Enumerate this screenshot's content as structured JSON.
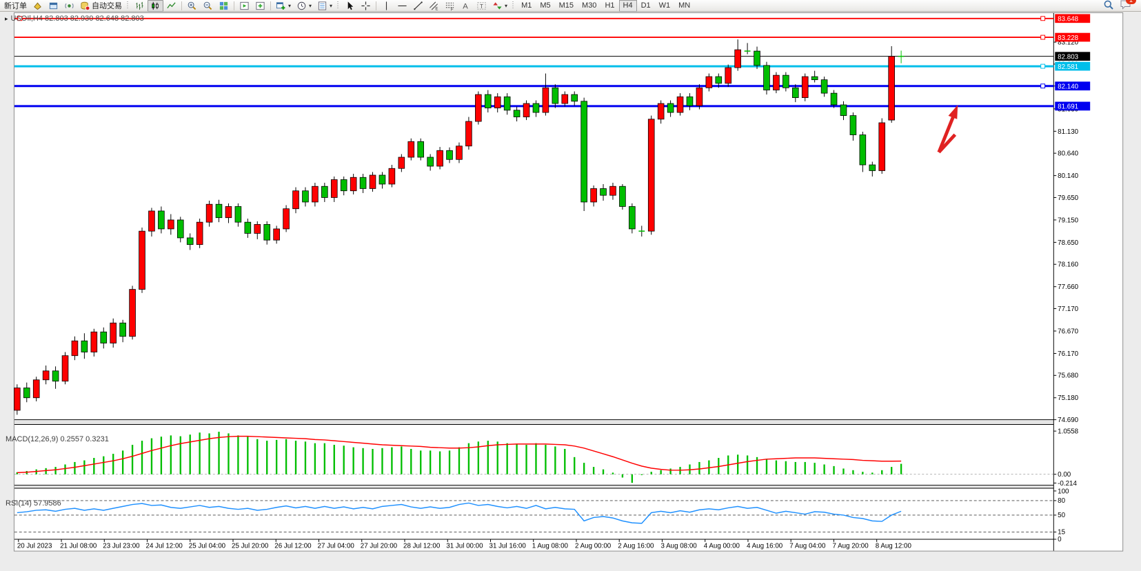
{
  "toolbar": {
    "new_order_label": "新订单",
    "autotrading_label": "自动交易",
    "timeframes": [
      "M1",
      "M5",
      "M15",
      "M30",
      "H1",
      "H4",
      "D1",
      "W1",
      "MN"
    ],
    "active_timeframe": "H4",
    "chat_badge": "1"
  },
  "chart": {
    "title": "USOIl,H4  82.803 82.930 82.648 82.803",
    "macd_label": "MACD(12,26,9) 0.2557 0.3231",
    "rsi_label": "RSI(14) 57.9586"
  },
  "chart_data": {
    "type": "candlestick",
    "symbol": "USOIl",
    "timeframe": "H4",
    "current_ohlc": {
      "open": "82.803",
      "high": "82.930",
      "low": "82.648",
      "close": "82.803"
    },
    "bull_color": "#FF0000",
    "bear_color": "#00BE00",
    "wick_color": "#000000",
    "price_ticks": [
      "83.120",
      "82.630",
      "82.140",
      "81.630",
      "81.130",
      "80.640",
      "80.140",
      "79.650",
      "79.150",
      "78.650",
      "78.160",
      "77.660",
      "77.170",
      "76.670",
      "76.170",
      "75.680",
      "75.180",
      "74.690"
    ],
    "hlines": [
      {
        "price": 83.648,
        "label": "83.648",
        "color": "#FF0000",
        "width": 2,
        "handles": "both"
      },
      {
        "price": 83.228,
        "label": "83.228",
        "color": "#FF0000",
        "width": 2,
        "handles": "right"
      },
      {
        "price": 82.803,
        "label": "82.803",
        "color": "#000000",
        "width": 1,
        "handles": "none"
      },
      {
        "price": 82.581,
        "label": "82.581",
        "color": "#00BEEA",
        "width": 3,
        "handles": "right"
      },
      {
        "price": 82.14,
        "label": "82.140",
        "color": "#0000F0",
        "width": 3,
        "handles": "right"
      },
      {
        "price": 81.691,
        "label": "81.691",
        "color": "#0000F0",
        "width": 3,
        "handles": "none"
      }
    ],
    "time_labels": [
      "20 Jul 2023",
      "21 Jul 08:00",
      "23 Jul 23:00",
      "24 Jul 12:00",
      "25 Jul 04:00",
      "25 Jul 20:00",
      "26 Jul 12:00",
      "27 Jul 04:00",
      "27 Jul 20:00",
      "28 Jul 12:00",
      "31 Jul 00:00",
      "31 Jul 16:00",
      "1 Aug 08:00",
      "2 Aug 00:00",
      "2 Aug 16:00",
      "3 Aug 08:00",
      "4 Aug 00:00",
      "4 Aug 16:00",
      "7 Aug 04:00",
      "7 Aug 20:00",
      "8 Aug 12:00"
    ],
    "candles": [
      [
        74.9,
        75.48,
        74.8,
        75.4
      ],
      [
        75.4,
        75.52,
        75.08,
        75.18
      ],
      [
        75.18,
        75.65,
        75.1,
        75.58
      ],
      [
        75.58,
        75.9,
        75.48,
        75.78
      ],
      [
        75.78,
        75.88,
        75.38,
        75.55
      ],
      [
        75.55,
        76.2,
        75.48,
        76.12
      ],
      [
        76.12,
        76.55,
        76.02,
        76.45
      ],
      [
        76.45,
        76.62,
        76.05,
        76.2
      ],
      [
        76.2,
        76.72,
        76.1,
        76.65
      ],
      [
        76.65,
        76.75,
        76.28,
        76.4
      ],
      [
        76.4,
        76.95,
        76.3,
        76.85
      ],
      [
        76.85,
        76.92,
        76.42,
        76.55
      ],
      [
        76.55,
        77.68,
        76.48,
        77.6
      ],
      [
        77.6,
        78.98,
        77.52,
        78.9
      ],
      [
        78.9,
        79.42,
        78.78,
        79.35
      ],
      [
        79.35,
        79.45,
        78.85,
        78.95
      ],
      [
        78.95,
        79.28,
        78.82,
        79.15
      ],
      [
        79.15,
        79.22,
        78.65,
        78.75
      ],
      [
        78.75,
        78.85,
        78.48,
        78.6
      ],
      [
        78.6,
        79.18,
        78.52,
        79.1
      ],
      [
        79.1,
        79.58,
        79.0,
        79.5
      ],
      [
        79.5,
        79.6,
        79.1,
        79.2
      ],
      [
        79.2,
        79.52,
        79.08,
        79.45
      ],
      [
        79.45,
        79.52,
        79.0,
        79.1
      ],
      [
        79.1,
        79.18,
        78.75,
        78.85
      ],
      [
        78.85,
        79.12,
        78.72,
        79.05
      ],
      [
        79.05,
        79.12,
        78.6,
        78.7
      ],
      [
        78.7,
        79.02,
        78.62,
        78.95
      ],
      [
        78.95,
        79.48,
        78.88,
        79.4
      ],
      [
        79.4,
        79.88,
        79.3,
        79.8
      ],
      [
        79.8,
        79.88,
        79.45,
        79.55
      ],
      [
        79.55,
        79.98,
        79.45,
        79.9
      ],
      [
        79.9,
        79.98,
        79.55,
        79.65
      ],
      [
        79.65,
        80.12,
        79.55,
        80.05
      ],
      [
        80.05,
        80.12,
        79.7,
        79.8
      ],
      [
        79.8,
        80.18,
        79.72,
        80.1
      ],
      [
        80.1,
        80.18,
        79.75,
        79.85
      ],
      [
        79.85,
        80.22,
        79.78,
        80.15
      ],
      [
        80.15,
        80.22,
        79.85,
        79.95
      ],
      [
        79.95,
        80.38,
        79.88,
        80.3
      ],
      [
        80.3,
        80.62,
        80.22,
        80.55
      ],
      [
        80.55,
        80.97,
        80.48,
        80.9
      ],
      [
        80.9,
        80.97,
        80.48,
        80.55
      ],
      [
        80.55,
        80.62,
        80.25,
        80.35
      ],
      [
        80.35,
        80.78,
        80.28,
        80.7
      ],
      [
        80.7,
        80.77,
        80.42,
        80.5
      ],
      [
        80.5,
        80.88,
        80.42,
        80.8
      ],
      [
        80.8,
        81.45,
        80.72,
        81.35
      ],
      [
        81.35,
        82.02,
        81.28,
        81.95
      ],
      [
        81.95,
        82.05,
        81.55,
        81.65
      ],
      [
        81.65,
        81.98,
        81.55,
        81.9
      ],
      [
        81.9,
        81.98,
        81.5,
        81.6
      ],
      [
        81.6,
        81.68,
        81.35,
        81.45
      ],
      [
        81.45,
        81.82,
        81.38,
        81.75
      ],
      [
        81.75,
        81.82,
        81.45,
        81.55
      ],
      [
        81.55,
        82.42,
        81.48,
        82.1
      ],
      [
        82.1,
        82.18,
        81.65,
        81.75
      ],
      [
        81.75,
        82.02,
        81.68,
        81.95
      ],
      [
        81.95,
        82.02,
        81.7,
        81.8
      ],
      [
        81.8,
        81.88,
        79.35,
        79.55
      ],
      [
        79.55,
        79.92,
        79.45,
        79.85
      ],
      [
        79.85,
        79.95,
        79.58,
        79.7
      ],
      [
        79.7,
        79.98,
        79.6,
        79.9
      ],
      [
        79.9,
        79.95,
        79.38,
        79.45
      ],
      [
        79.45,
        79.52,
        78.85,
        78.95
      ],
      [
        78.95,
        79.02,
        78.78,
        78.9
      ],
      [
        78.9,
        81.48,
        78.82,
        81.4
      ],
      [
        81.4,
        81.82,
        81.3,
        81.75
      ],
      [
        81.75,
        81.82,
        81.45,
        81.55
      ],
      [
        81.55,
        81.98,
        81.48,
        81.9
      ],
      [
        81.9,
        81.98,
        81.6,
        81.7
      ],
      [
        81.7,
        82.18,
        81.62,
        82.1
      ],
      [
        82.1,
        82.42,
        82.02,
        82.35
      ],
      [
        82.35,
        82.42,
        82.1,
        82.2
      ],
      [
        82.2,
        82.62,
        82.12,
        82.55
      ],
      [
        82.55,
        83.18,
        82.48,
        82.95
      ],
      [
        82.95,
        83.1,
        82.85,
        82.92
      ],
      [
        82.92,
        83.02,
        82.52,
        82.6
      ],
      [
        82.6,
        82.68,
        81.95,
        82.05
      ],
      [
        82.05,
        82.45,
        81.98,
        82.38
      ],
      [
        82.38,
        82.45,
        82.02,
        82.1
      ],
      [
        82.1,
        82.18,
        81.78,
        81.88
      ],
      [
        81.88,
        82.42,
        81.8,
        82.35
      ],
      [
        82.35,
        82.48,
        82.22,
        82.28
      ],
      [
        82.28,
        82.35,
        81.9,
        81.98
      ],
      [
        81.98,
        82.05,
        81.65,
        81.72
      ],
      [
        81.72,
        81.8,
        81.38,
        81.48
      ],
      [
        81.48,
        81.55,
        80.92,
        81.05
      ],
      [
        81.05,
        81.12,
        80.22,
        80.38
      ],
      [
        80.38,
        80.45,
        80.12,
        80.25
      ],
      [
        80.25,
        81.42,
        80.18,
        81.32
      ],
      [
        81.38,
        83.03,
        81.32,
        82.803
      ],
      [
        82.803,
        82.93,
        82.648,
        82.803
      ]
    ],
    "macd": {
      "params": "12,26,9",
      "value": "0.2557",
      "signal": "0.3231",
      "axis_ticks": [
        "1.0558",
        "0.00",
        "-0.214"
      ],
      "hist_color": "#00BE00",
      "signal_color": "#FF0000",
      "hist": [
        0.05,
        0.08,
        0.12,
        0.15,
        0.18,
        0.24,
        0.3,
        0.34,
        0.4,
        0.44,
        0.5,
        0.58,
        0.72,
        0.82,
        0.88,
        0.92,
        0.95,
        0.93,
        0.97,
        1.02,
        1.0,
        1.04,
        1.0,
        0.95,
        0.92,
        0.86,
        0.82,
        0.84,
        0.86,
        0.82,
        0.8,
        0.76,
        0.76,
        0.72,
        0.7,
        0.66,
        0.64,
        0.62,
        0.64,
        0.66,
        0.68,
        0.62,
        0.58,
        0.58,
        0.56,
        0.58,
        0.66,
        0.76,
        0.8,
        0.82,
        0.8,
        0.76,
        0.74,
        0.72,
        0.76,
        0.72,
        0.68,
        0.62,
        0.42,
        0.28,
        0.18,
        0.12,
        0.04,
        -0.08,
        -0.21,
        -0.02,
        0.06,
        0.1,
        0.14,
        0.18,
        0.24,
        0.3,
        0.34,
        0.4,
        0.46,
        0.48,
        0.46,
        0.42,
        0.36,
        0.34,
        0.32,
        0.3,
        0.3,
        0.28,
        0.24,
        0.2,
        0.14,
        0.1,
        0.06,
        0.04,
        0.1,
        0.18,
        0.2557
      ],
      "signal_line": [
        0.04,
        0.05,
        0.07,
        0.09,
        0.11,
        0.14,
        0.17,
        0.21,
        0.25,
        0.29,
        0.33,
        0.38,
        0.44,
        0.51,
        0.58,
        0.64,
        0.7,
        0.75,
        0.79,
        0.83,
        0.87,
        0.9,
        0.92,
        0.93,
        0.93,
        0.92,
        0.91,
        0.9,
        0.89,
        0.88,
        0.87,
        0.85,
        0.84,
        0.82,
        0.8,
        0.78,
        0.76,
        0.74,
        0.72,
        0.71,
        0.7,
        0.69,
        0.68,
        0.66,
        0.65,
        0.64,
        0.64,
        0.65,
        0.67,
        0.7,
        0.72,
        0.73,
        0.74,
        0.74,
        0.74,
        0.74,
        0.73,
        0.72,
        0.69,
        0.64,
        0.57,
        0.5,
        0.43,
        0.35,
        0.27,
        0.2,
        0.15,
        0.12,
        0.1,
        0.1,
        0.11,
        0.13,
        0.16,
        0.19,
        0.23,
        0.27,
        0.31,
        0.34,
        0.37,
        0.38,
        0.39,
        0.4,
        0.4,
        0.4,
        0.39,
        0.38,
        0.37,
        0.36,
        0.34,
        0.33,
        0.32,
        0.32,
        0.3231
      ]
    },
    "rsi": {
      "period": "14",
      "value": "57.9586",
      "axis_ticks": [
        "100",
        "80",
        "50",
        "15",
        "0"
      ],
      "levels": [
        80,
        50,
        15
      ],
      "color": "#1E90FF",
      "values": [
        55,
        57,
        60,
        61,
        58,
        62,
        64,
        60,
        63,
        60,
        64,
        68,
        72,
        74,
        70,
        71,
        66,
        64,
        67,
        70,
        66,
        68,
        64,
        62,
        64,
        60,
        62,
        66,
        69,
        65,
        68,
        64,
        68,
        64,
        67,
        63,
        66,
        63,
        68,
        70,
        72,
        67,
        64,
        67,
        64,
        66,
        72,
        75,
        70,
        72,
        68,
        65,
        68,
        64,
        70,
        63,
        66,
        63,
        62,
        38,
        45,
        47,
        44,
        38,
        34,
        33,
        55,
        58,
        55,
        59,
        56,
        61,
        63,
        61,
        65,
        68,
        64,
        66,
        60,
        54,
        58,
        55,
        52,
        57,
        56,
        52,
        50,
        45,
        43,
        38,
        37,
        50,
        57.96
      ]
    },
    "annotation_arrow": {
      "tail": [
        1373,
        225
      ],
      "tip": [
        1401,
        155
      ],
      "color": "#E02222"
    }
  }
}
